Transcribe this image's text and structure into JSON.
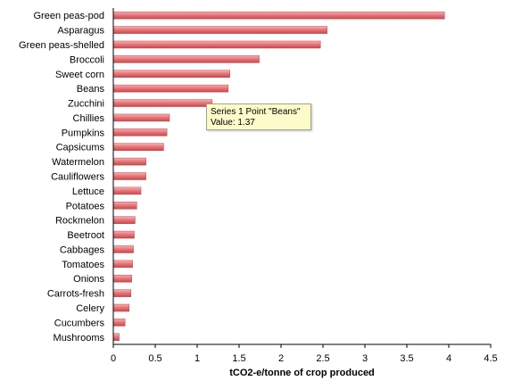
{
  "chart_data": {
    "type": "bar",
    "orientation": "horizontal",
    "categories": [
      "Green peas-pod",
      "Asparagus",
      "Green peas-shelled",
      "Broccoli",
      "Sweet corn",
      "Beans",
      "Zucchini",
      "Chillies",
      "Pumpkins",
      "Capsicums",
      "Watermelon",
      "Cauliflowers",
      "Lettuce",
      "Potatoes",
      "Rockmelon",
      "Beetroot",
      "Cabbages",
      "Tomatoes",
      "Onions",
      "Carrots-fresh",
      "Celery",
      "Cucumbers",
      "Mushrooms"
    ],
    "values": [
      3.95,
      2.55,
      2.47,
      1.74,
      1.39,
      1.37,
      1.18,
      0.67,
      0.64,
      0.6,
      0.39,
      0.39,
      0.33,
      0.28,
      0.26,
      0.25,
      0.24,
      0.23,
      0.22,
      0.21,
      0.19,
      0.14,
      0.07
    ],
    "title": "",
    "xlabel": "tCO2-e/tonne of crop produced",
    "ylabel": "",
    "xlim": [
      0,
      4.5
    ],
    "xticks": [
      "0",
      "0.5",
      "1",
      "1.5",
      "2",
      "2.5",
      "3",
      "3.5",
      "4",
      "4.5"
    ],
    "xtick_values": [
      0,
      0.5,
      1,
      1.5,
      2,
      2.5,
      3,
      3.5,
      4,
      4.5
    ],
    "grid": false,
    "bar_color": "#e8777b",
    "annotation": {
      "line1": "Series 1 Point \"Beans\"",
      "line2": "Value: 1.37"
    }
  }
}
